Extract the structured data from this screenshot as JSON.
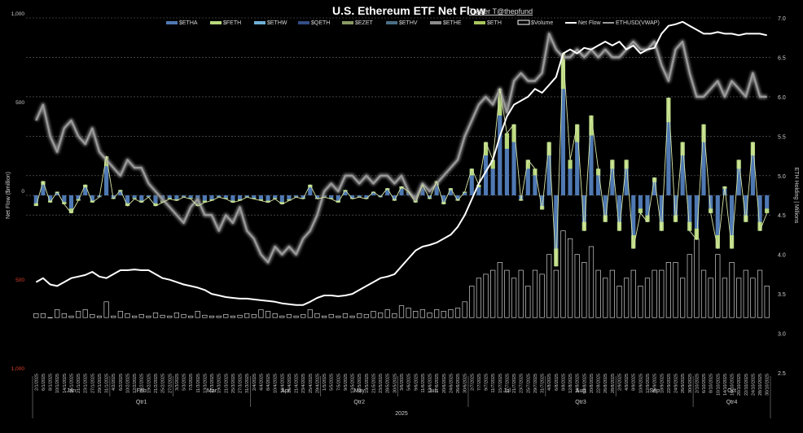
{
  "title": "U.S. Ethereum ETF Net Flow",
  "author": "Trader T@thepfund",
  "legend": [
    {
      "key": "ETHA",
      "label": "$ETHA",
      "color": "#4f79b3",
      "kind": "bar"
    },
    {
      "key": "FETH",
      "label": "$FETH",
      "color": "#b7d77a",
      "kind": "bar"
    },
    {
      "key": "ETHW",
      "label": "$ETHW",
      "color": "#6fb0d6",
      "kind": "bar"
    },
    {
      "key": "QETH",
      "label": "$QETH",
      "color": "#334d86",
      "kind": "bar"
    },
    {
      "key": "EZET",
      "label": "$EZET",
      "color": "#8a9a64",
      "kind": "bar"
    },
    {
      "key": "ETHV",
      "label": "$ETHV",
      "color": "#4b6f86",
      "kind": "bar"
    },
    {
      "key": "ETHE",
      "label": "$ETHE",
      "color": "#8c8c8c",
      "kind": "bar"
    },
    {
      "key": "ETH",
      "label": "$ETH",
      "color": "#a9c65c",
      "kind": "bar"
    },
    {
      "key": "Volume",
      "label": "$Volume",
      "color": "#ffffff",
      "kind": "box"
    },
    {
      "key": "NetFlow",
      "label": "Net Flow",
      "color": "#ffffff",
      "kind": "line"
    },
    {
      "key": "ETHUSD",
      "label": "ETHUSD(VWAP)",
      "color": "#9a9a9a",
      "kind": "line"
    }
  ],
  "chart_data": {
    "type": "bar",
    "title": "U.S. Ethereum ETF Net Flow",
    "xlabel": "2025",
    "y_left": {
      "label": "Net Flow ($million)",
      "range": [
        -1000,
        1000
      ],
      "ticks": [
        {
          "value": 1000,
          "label": "1,000",
          "color": "#cfcfcf"
        },
        {
          "value": 500,
          "label": "500",
          "color": "#cfcfcf"
        },
        {
          "value": 0,
          "label": "0",
          "color": "#cfcfcf"
        },
        {
          "value": -500,
          "label": "500",
          "color": "#e0412d"
        },
        {
          "value": -1000,
          "label": "1,000",
          "color": "#e0412d"
        }
      ]
    },
    "y_right": {
      "label": "ETH Holding | Millions",
      "range": [
        2.5,
        7.0
      ],
      "ticks": [
        "7.0",
        "6.5",
        "6.0",
        "5.5",
        "5.0",
        "4.5",
        "4.0",
        "3.5",
        "3.0",
        "2.5"
      ]
    },
    "x_dates": [
      "2/1/2025",
      "6/1/2025",
      "8/1/2025",
      "10/1/2025",
      "14/1/2025",
      "16/1/2025",
      "21/1/2025",
      "23/1/2025",
      "27/1/2025",
      "29/1/2025",
      "31/1/2025",
      "4/2/2025",
      "6/2/2025",
      "10/2/2025",
      "12/2/2025",
      "14/2/2025",
      "19/2/2025",
      "21/2/2025",
      "25/2/2025",
      "27/2/2025",
      "3/3/2025",
      "5/3/2025",
      "7/3/2025",
      "11/3/2025",
      "13/3/2025",
      "17/3/2025",
      "19/3/2025",
      "21/3/2025",
      "25/3/2025",
      "27/3/2025",
      "31/3/2025",
      "2/4/2025",
      "4/4/2025",
      "8/4/2025",
      "10/4/2025",
      "14/4/2025",
      "16/4/2025",
      "21/4/2025",
      "23/4/2025",
      "25/4/2025",
      "29/4/2025",
      "1/5/2025",
      "5/5/2025",
      "7/5/2025",
      "9/5/2025",
      "13/5/2025",
      "15/5/2025",
      "19/5/2025",
      "21/5/2025",
      "23/5/2025",
      "28/5/2025",
      "30/5/2025",
      "3/6/2025",
      "5/6/2025",
      "9/6/2025",
      "11/6/2025",
      "13/6/2025",
      "17/6/2025",
      "20/6/2025",
      "24/6/2025",
      "26/6/2025",
      "30/6/2025",
      "2/7/2025",
      "7/7/2025",
      "9/7/2025",
      "11/7/2025",
      "15/7/2025",
      "17/7/2025",
      "21/7/2025",
      "23/7/2025",
      "25/7/2025",
      "29/7/2025",
      "31/7/2025",
      "4/8/2025",
      "6/8/2025",
      "8/8/2025",
      "12/8/2025",
      "14/8/2025",
      "18/8/2025",
      "20/8/2025",
      "22/8/2025",
      "26/8/2025",
      "28/8/2025",
      "2/9/2025",
      "4/9/2025",
      "8/9/2025",
      "10/9/2025",
      "12/9/2025",
      "16/9/2025",
      "18/9/2025",
      "22/9/2025",
      "24/9/2025",
      "26/9/2025",
      "30/9/2025",
      "2/10/2025",
      "6/10/2025",
      "8/10/2025",
      "10/10/2025",
      "14/10/2025",
      "16/10/2025",
      "20/10/2025",
      "22/10/2025",
      "24/10/2025",
      "28/10/2025",
      "30/10/2025"
    ],
    "months": [
      {
        "label": "Jan",
        "start": 0,
        "end": 11
      },
      {
        "label": "Feb",
        "start": 11,
        "end": 20
      },
      {
        "label": "Mar",
        "start": 20,
        "end": 31
      },
      {
        "label": "Apr",
        "start": 31,
        "end": 41
      },
      {
        "label": "May",
        "start": 41,
        "end": 52
      },
      {
        "label": "Jun",
        "start": 52,
        "end": 62
      },
      {
        "label": "Jul",
        "start": 62,
        "end": 73
      },
      {
        "label": "Aug",
        "start": 73,
        "end": 83
      },
      {
        "label": "Sep",
        "start": 83,
        "end": 94
      },
      {
        "label": "Oct",
        "start": 94,
        "end": 105
      }
    ],
    "quarters": [
      {
        "label": "Qtr1",
        "start": 0,
        "end": 31
      },
      {
        "label": "Qtr2",
        "start": 31,
        "end": 62
      },
      {
        "label": "Qtr3",
        "start": 62,
        "end": 94
      },
      {
        "label": "Qtr4",
        "start": 94,
        "end": 105
      }
    ],
    "year": "2025",
    "series": [
      {
        "name": "Net Flow",
        "axis": "left",
        "values": [
          -60,
          80,
          -40,
          20,
          -50,
          -100,
          -30,
          60,
          -40,
          -10,
          220,
          -20,
          30,
          -60,
          -20,
          -40,
          -10,
          -60,
          -40,
          -20,
          -30,
          -10,
          -20,
          -60,
          -40,
          -30,
          -10,
          -20,
          -40,
          -30,
          -10,
          -20,
          -30,
          -40,
          -20,
          -50,
          -30,
          -10,
          -20,
          60,
          -20,
          -10,
          -20,
          -40,
          30,
          -20,
          -10,
          -20,
          20,
          -10,
          40,
          -30,
          50,
          20,
          -40,
          60,
          -20,
          80,
          -50,
          40,
          -30,
          20,
          150,
          60,
          300,
          200,
          600,
          350,
          400,
          -30,
          200,
          150,
          -80,
          300,
          -400,
          800,
          200,
          400,
          -200,
          450,
          150,
          -150,
          200,
          -200,
          200,
          -300,
          -100,
          -150,
          100,
          -200,
          550,
          -150,
          300,
          -200,
          -250,
          400,
          -100,
          -300,
          50,
          -300,
          200,
          -150,
          300,
          -200,
          -100
        ]
      },
      {
        "name": "ETH Holding | Millions",
        "axis": "right",
        "values": [
          3.65,
          3.7,
          3.62,
          3.6,
          3.65,
          3.7,
          3.72,
          3.74,
          3.78,
          3.72,
          3.7,
          3.75,
          3.8,
          3.8,
          3.81,
          3.8,
          3.8,
          3.75,
          3.7,
          3.68,
          3.65,
          3.62,
          3.6,
          3.58,
          3.55,
          3.5,
          3.48,
          3.46,
          3.45,
          3.44,
          3.44,
          3.43,
          3.42,
          3.41,
          3.4,
          3.38,
          3.37,
          3.36,
          3.36,
          3.4,
          3.45,
          3.48,
          3.48,
          3.47,
          3.48,
          3.5,
          3.55,
          3.6,
          3.65,
          3.7,
          3.72,
          3.75,
          3.85,
          3.95,
          4.05,
          4.1,
          4.12,
          4.15,
          4.2,
          4.25,
          4.35,
          4.5,
          4.7,
          4.9,
          5.05,
          5.2,
          5.5,
          5.75,
          5.9,
          5.95,
          6.0,
          6.1,
          6.05,
          6.15,
          6.25,
          6.55,
          6.6,
          6.55,
          6.62,
          6.6,
          6.65,
          6.7,
          6.65,
          6.7,
          6.6,
          6.65,
          6.55,
          6.6,
          6.62,
          6.8,
          6.9,
          6.92,
          6.95,
          6.9,
          6.85,
          6.8,
          6.8,
          6.82,
          6.8,
          6.8,
          6.78,
          6.8,
          6.8,
          6.8,
          6.78
        ]
      },
      {
        "name": "ETHUSD(VWAP)",
        "axis": "right",
        "values": [
          5.7,
          5.9,
          5.5,
          5.3,
          5.6,
          5.7,
          5.5,
          5.4,
          5.6,
          5.3,
          5.2,
          5.1,
          5.0,
          5.2,
          5.1,
          5.1,
          4.9,
          4.8,
          4.7,
          4.6,
          4.5,
          4.4,
          4.6,
          4.7,
          4.5,
          4.5,
          4.3,
          4.5,
          4.4,
          4.6,
          4.3,
          4.2,
          4.0,
          3.9,
          4.1,
          4.0,
          4.1,
          4.0,
          4.2,
          4.3,
          4.5,
          4.8,
          4.9,
          4.8,
          5.0,
          5.0,
          4.9,
          5.0,
          4.9,
          5.0,
          5.0,
          4.9,
          5.0,
          4.8,
          4.7,
          4.9,
          4.8,
          4.9,
          5.0,
          5.1,
          5.2,
          5.5,
          5.7,
          5.9,
          6.0,
          5.9,
          6.1,
          5.8,
          6.2,
          6.3,
          6.2,
          6.2,
          6.3,
          6.8,
          6.6,
          6.5,
          6.5,
          6.6,
          6.5,
          6.6,
          6.5,
          6.6,
          6.5,
          6.5,
          6.6,
          6.7,
          6.6,
          6.6,
          6.7,
          6.4,
          6.2,
          6.6,
          6.7,
          6.3,
          6.0,
          6.0,
          6.1,
          6.2,
          6.0,
          6.2,
          6.1,
          6.0,
          6.3,
          6.0,
          6.0
        ]
      },
      {
        "name": "$Volume",
        "axis": "right",
        "values": [
          3.25,
          3.25,
          3.2,
          3.3,
          3.25,
          3.22,
          3.28,
          3.3,
          3.24,
          3.22,
          3.4,
          3.22,
          3.28,
          3.25,
          3.22,
          3.24,
          3.22,
          3.26,
          3.23,
          3.22,
          3.26,
          3.24,
          3.22,
          3.28,
          3.23,
          3.22,
          3.22,
          3.24,
          3.22,
          3.23,
          3.25,
          3.24,
          3.3,
          3.28,
          3.25,
          3.22,
          3.24,
          3.22,
          3.24,
          3.3,
          3.25,
          3.22,
          3.24,
          3.22,
          3.25,
          3.22,
          3.25,
          3.24,
          3.28,
          3.26,
          3.3,
          3.25,
          3.35,
          3.32,
          3.28,
          3.3,
          3.26,
          3.3,
          3.28,
          3.3,
          3.32,
          3.4,
          3.6,
          3.7,
          3.75,
          3.8,
          3.9,
          3.8,
          3.7,
          3.8,
          3.6,
          3.8,
          3.75,
          4.0,
          3.8,
          4.3,
          4.2,
          4.0,
          3.9,
          4.1,
          3.8,
          3.7,
          3.8,
          3.6,
          3.7,
          3.8,
          3.6,
          3.7,
          3.8,
          3.8,
          3.9,
          3.9,
          3.7,
          4.0,
          4.2,
          3.8,
          3.7,
          4.0,
          3.7,
          3.9,
          3.7,
          3.8,
          3.7,
          3.8,
          3.6
        ]
      }
    ]
  }
}
